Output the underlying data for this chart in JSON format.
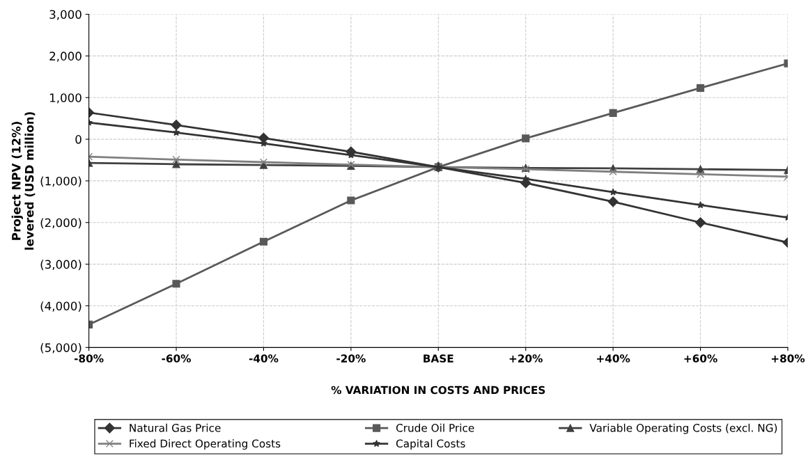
{
  "chart_data": {
    "type": "line",
    "xlabel": "% VARIATION IN COSTS AND PRICES",
    "ylabel": "Project NPV (12%)\nlevered (USD million)",
    "categories": [
      "-80%",
      "-60%",
      "-40%",
      "-20%",
      "BASE",
      "+20%",
      "+40%",
      "+60%",
      "+80%"
    ],
    "ylim": [
      -5000,
      3000
    ],
    "yticks": [
      {
        "value": -5000,
        "label": "(5,000)"
      },
      {
        "value": -4000,
        "label": "(4,000)"
      },
      {
        "value": -3000,
        "label": "(3,000)"
      },
      {
        "value": -2000,
        "label": "(2,000)"
      },
      {
        "value": -1000,
        "label": "(1,000)"
      },
      0,
      {
        "value": 1000,
        "label": "1,000"
      },
      {
        "value": 2000,
        "label": "2,000"
      },
      {
        "value": 3000,
        "label": "3,000"
      }
    ],
    "grid": true,
    "legend": "bottom",
    "series": [
      {
        "name": "Natural Gas Price",
        "color": "#333333",
        "marker": "diamond",
        "values": [
          640,
          340,
          30,
          -300,
          -670,
          -1050,
          -1500,
          -2000,
          -2480
        ]
      },
      {
        "name": "Crude Oil Price",
        "color": "#595959",
        "marker": "square",
        "values": [
          -4450,
          -3470,
          -2460,
          -1470,
          -670,
          20,
          630,
          1230,
          1820
        ]
      },
      {
        "name": "Variable Operating Costs (excl. NG)",
        "color": "#404040",
        "marker": "triangle",
        "values": [
          -570,
          -600,
          -620,
          -640,
          -670,
          -690,
          -700,
          -720,
          -740
        ]
      },
      {
        "name": "Fixed Direct Operating Costs",
        "color": "#808080",
        "marker": "cross",
        "values": [
          -420,
          -490,
          -550,
          -610,
          -670,
          -720,
          -780,
          -840,
          -900
        ]
      },
      {
        "name": "Capital Costs",
        "color": "#333333",
        "marker": "star",
        "values": [
          400,
          160,
          -100,
          -380,
          -670,
          -950,
          -1270,
          -1580,
          -1880
        ]
      }
    ]
  }
}
